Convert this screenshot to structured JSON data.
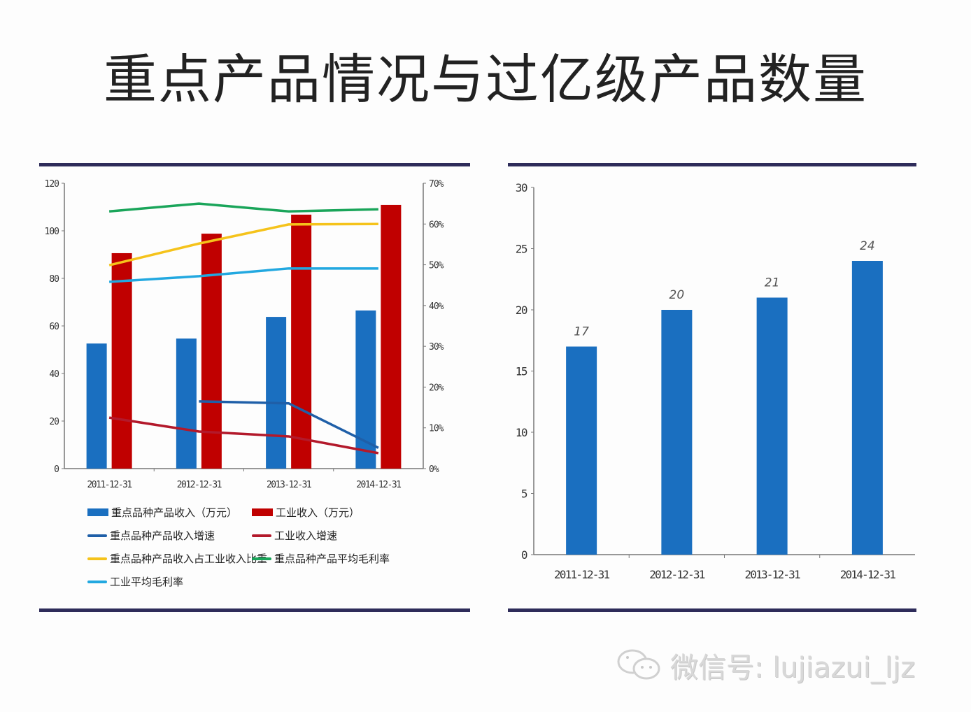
{
  "page": {
    "title": "重点产品情况与过亿级产品数量",
    "watermark": "微信号: lujiazui_ljz"
  },
  "chart_data": [
    {
      "type": "bar",
      "subtype": "combo-bar-line",
      "title": "",
      "categories": [
        "2011-12-31",
        "2012-12-31",
        "2013-12-31",
        "2014-12-31"
      ],
      "y_left": {
        "ylim": [
          0,
          120
        ],
        "ticks": [
          "0",
          "20",
          "40",
          "60",
          "80",
          "100",
          "120"
        ]
      },
      "y_right": {
        "ylim": [
          0,
          70
        ],
        "ticks": [
          "0%",
          "10%",
          "20%",
          "30%",
          "40%",
          "50%",
          "60%",
          "70%"
        ]
      },
      "series": [
        {
          "name": "重点品种产品收入（万元）",
          "kind": "bar",
          "axis": "left",
          "color": "#1a6fc0",
          "values": [
            52.6,
            54.7,
            63.8,
            66.5
          ]
        },
        {
          "name": "工业收入（万元）",
          "kind": "bar",
          "axis": "left",
          "color": "#c00000",
          "values": [
            90.6,
            98.8,
            106.8,
            110.9
          ]
        },
        {
          "name": "重点品种产品收入增速",
          "kind": "line",
          "axis": "right",
          "color": "#1f5fa8",
          "values": [
            null,
            16.5,
            16.0,
            5.1
          ]
        },
        {
          "name": "工业收入增速",
          "kind": "line",
          "axis": "right",
          "color": "#b3192b",
          "values": [
            12.5,
            9.1,
            7.9,
            3.8
          ]
        },
        {
          "name": "重点品种产品收入占工业收入比重",
          "kind": "line",
          "axis": "right",
          "color": "#f5c31b",
          "values": [
            49.9,
            55.2,
            59.9,
            60.0
          ]
        },
        {
          "name": "重点品种产品平均毛利率",
          "kind": "line",
          "axis": "right",
          "color": "#1aa55a",
          "values": [
            63.1,
            65.0,
            63.1,
            63.6
          ]
        },
        {
          "name": "工业平均毛利率",
          "kind": "line",
          "axis": "right",
          "color": "#22a8e0",
          "values": [
            45.8,
            47.2,
            49.1,
            49.1
          ]
        }
      ],
      "legend": "bottom"
    },
    {
      "type": "bar",
      "title": "",
      "categories": [
        "2011-12-31",
        "2012-12-31",
        "2013-12-31",
        "2014-12-31"
      ],
      "values": [
        17,
        20,
        21,
        24
      ],
      "data_labels": [
        "17",
        "20",
        "21",
        "24"
      ],
      "color": "#1a6fc0",
      "ylim": [
        0,
        30
      ],
      "yticks": [
        "0",
        "5",
        "10",
        "15",
        "20",
        "25",
        "30"
      ],
      "xlabel": "",
      "ylabel": ""
    }
  ]
}
